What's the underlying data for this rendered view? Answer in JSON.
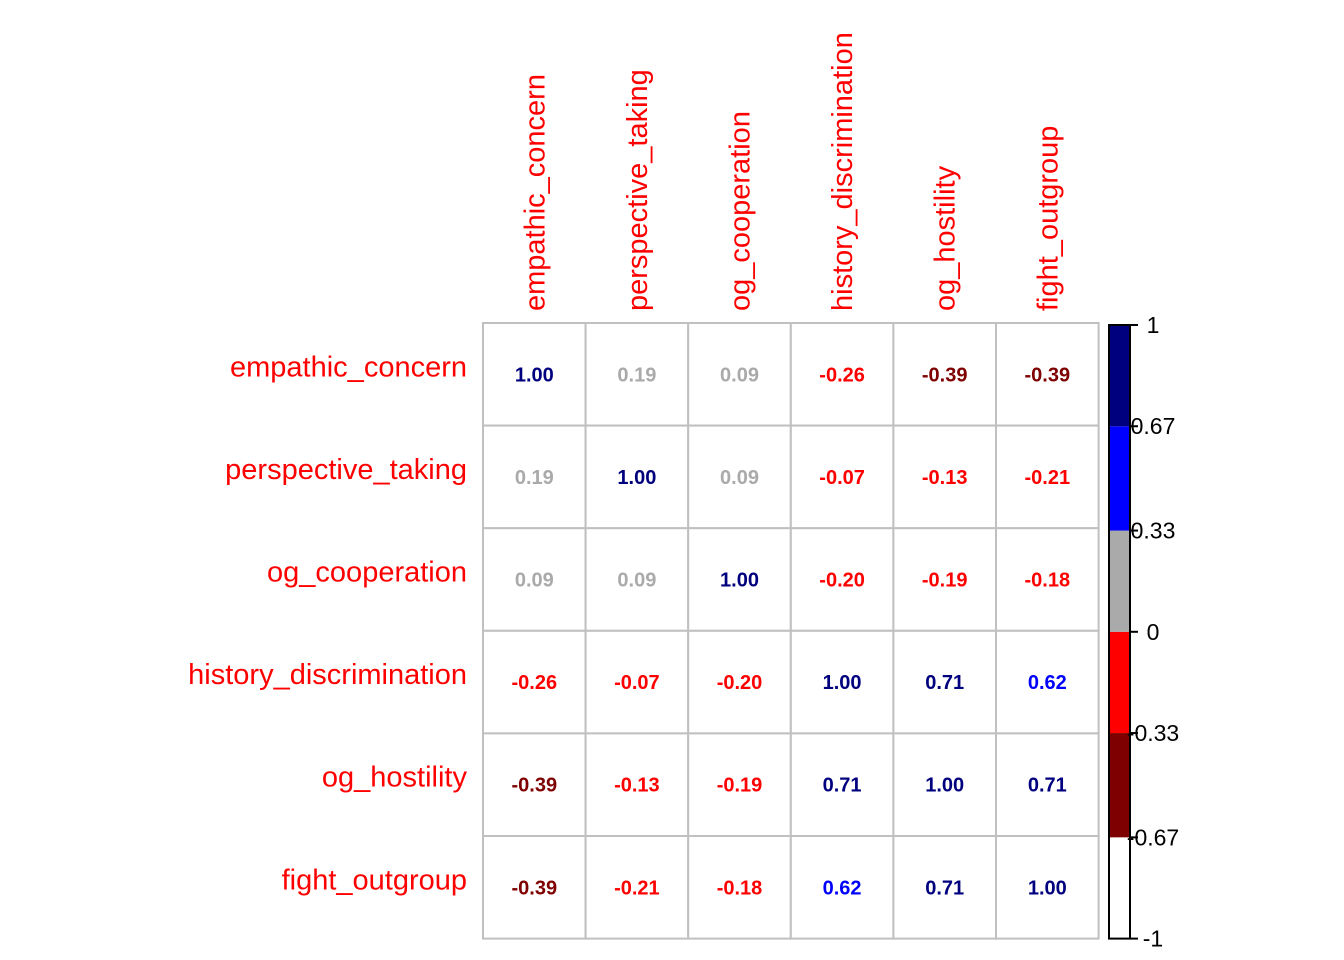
{
  "chart_data": {
    "type": "heatmap",
    "variables": [
      "empathic_concern",
      "perspective_taking",
      "og_cooperation",
      "history_discrimination",
      "og_hostility",
      "fight_outgroup"
    ],
    "matrix": [
      [
        1.0,
        0.19,
        0.09,
        -0.26,
        -0.39,
        -0.39
      ],
      [
        0.19,
        1.0,
        0.09,
        -0.07,
        -0.13,
        -0.21
      ],
      [
        0.09,
        0.09,
        1.0,
        -0.2,
        -0.19,
        -0.18
      ],
      [
        -0.26,
        -0.07,
        -0.2,
        1.0,
        0.71,
        0.62
      ],
      [
        -0.39,
        -0.13,
        -0.19,
        0.71,
        1.0,
        0.71
      ],
      [
        -0.39,
        -0.21,
        -0.18,
        0.62,
        0.71,
        1.0
      ]
    ],
    "cell_labels": [
      [
        "1.00",
        "0.19",
        "0.09",
        "-0.26",
        "-0.39",
        "-0.39"
      ],
      [
        "0.19",
        "1.00",
        "0.09",
        "-0.07",
        "-0.13",
        "-0.21"
      ],
      [
        "0.09",
        "0.09",
        "1.00",
        "-0.20",
        "-0.19",
        "-0.18"
      ],
      [
        "-0.26",
        "-0.07",
        "-0.20",
        "1.00",
        "0.71",
        "0.62"
      ],
      [
        "-0.39",
        "-0.13",
        "-0.19",
        "0.71",
        "1.00",
        "0.71"
      ],
      [
        "-0.39",
        "-0.21",
        "-0.18",
        "0.62",
        "0.71",
        "1.00"
      ]
    ],
    "label_color": "#ff0000",
    "grid": true,
    "grid_color": "#c0c0c0",
    "legend": {
      "position": "right",
      "range": [
        -1,
        1
      ],
      "bins": [
        {
          "from": -1.0,
          "to": -0.67,
          "color": "#ffffff"
        },
        {
          "from": -0.67,
          "to": -0.33,
          "color": "#7f0000"
        },
        {
          "from": -0.33,
          "to": 0.0,
          "color": "#ff0000"
        },
        {
          "from": 0.0,
          "to": 0.33,
          "color": "#aaaaaa"
        },
        {
          "from": 0.33,
          "to": 0.67,
          "color": "#0000ff"
        },
        {
          "from": 0.67,
          "to": 1.0,
          "color": "#00007f"
        }
      ],
      "ticks": [
        1,
        0.67,
        0.33,
        0,
        -0.33,
        -0.67,
        -1
      ],
      "tick_labels": [
        "1",
        "0.67",
        "0.33",
        "0",
        "-0.33",
        "-0.67",
        "-1"
      ]
    }
  }
}
